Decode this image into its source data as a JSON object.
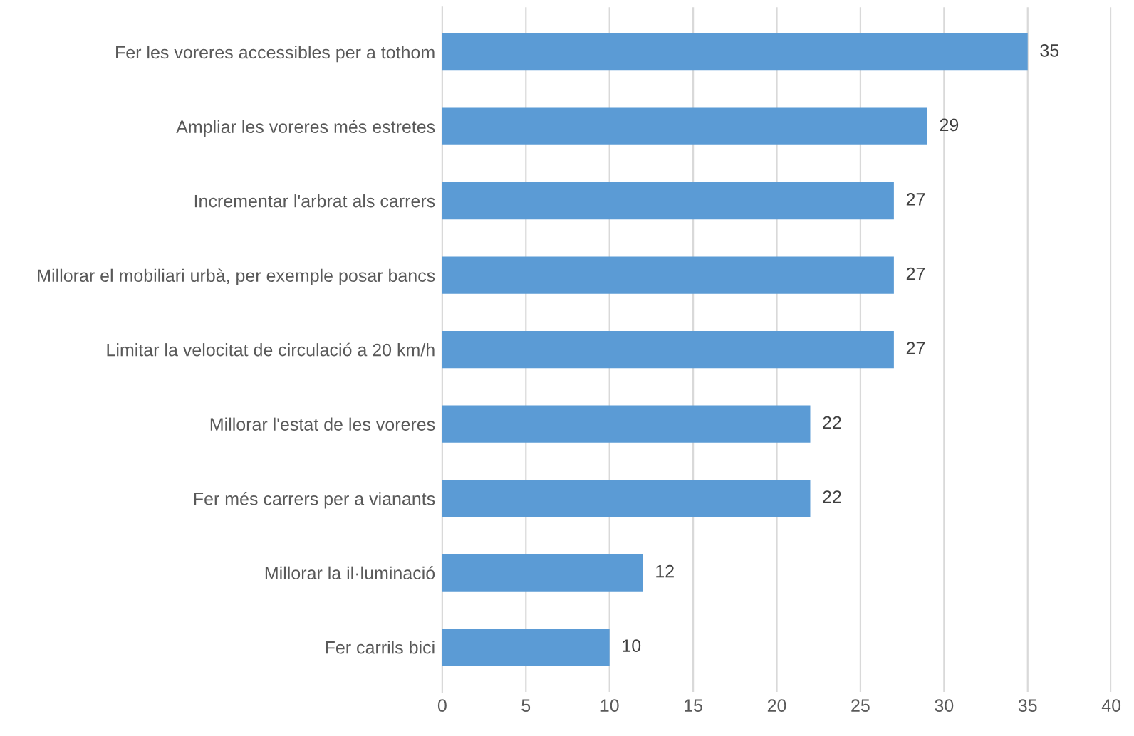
{
  "chart_data": {
    "type": "bar",
    "orientation": "horizontal",
    "categories": [
      "Fer les voreres accessibles per a tothom",
      "Ampliar les voreres més estretes",
      "Incrementar l'arbrat als carrers",
      "Millorar el mobiliari urbà, per exemple posar bancs",
      "Limitar la velocitat de circulació a 20 km/h",
      "Millorar l'estat de les voreres",
      "Fer més carrers per a vianants",
      "Millorar la il·luminació",
      "Fer carrils bici"
    ],
    "values": [
      35,
      29,
      27,
      27,
      27,
      22,
      22,
      12,
      10
    ],
    "color": "#5b9bd5",
    "xlim": [
      0,
      40
    ],
    "xticks": [
      0,
      5,
      10,
      15,
      20,
      25,
      30,
      35,
      40
    ],
    "grid": "x",
    "data_labels": true
  }
}
